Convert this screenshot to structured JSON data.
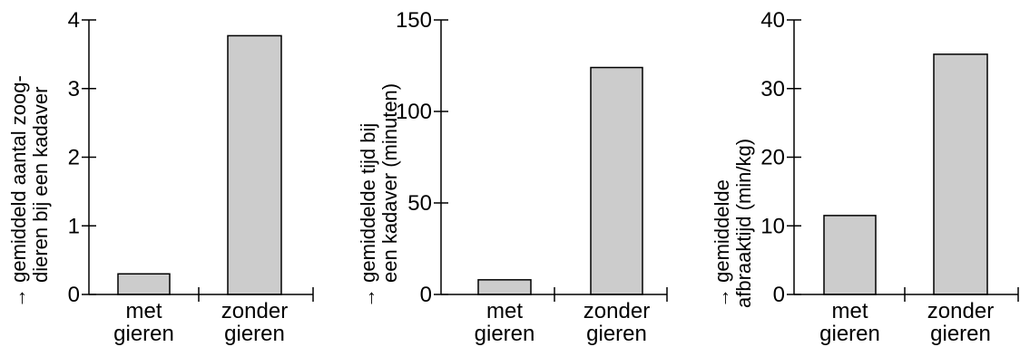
{
  "chart_data": [
    {
      "type": "bar",
      "categories": [
        [
          "met",
          "gieren"
        ],
        [
          "zonder",
          "gieren"
        ]
      ],
      "values": [
        0.3,
        3.77
      ],
      "ylabel_lines": [
        "gemiddeld aantal zoog-",
        "dieren bij een kadaver"
      ],
      "ylabel_arrow": "→",
      "ylim": [
        0,
        4
      ],
      "yticks": [
        0,
        1,
        2,
        3,
        4
      ],
      "ytick_labels": [
        "0",
        "1",
        "2",
        "3",
        "4"
      ],
      "grid": false,
      "bar_color": "#cccccc"
    },
    {
      "type": "bar",
      "categories": [
        [
          "met",
          "gieren"
        ],
        [
          "zonder",
          "gieren"
        ]
      ],
      "values": [
        8,
        124
      ],
      "ylabel_lines": [
        "gemiddelde tijd bij",
        "een kadaver (minuten)"
      ],
      "ylabel_arrow": "→",
      "ylim": [
        0,
        150
      ],
      "yticks": [
        0,
        50,
        100,
        150
      ],
      "ytick_labels": [
        "0",
        "50",
        "100",
        "150"
      ],
      "grid": false,
      "bar_color": "#cccccc"
    },
    {
      "type": "bar",
      "categories": [
        [
          "met",
          "gieren"
        ],
        [
          "zonder",
          "gieren"
        ]
      ],
      "values": [
        11.5,
        35
      ],
      "ylabel_lines": [
        "gemiddelde",
        "afbraaktijd (min/kg)"
      ],
      "ylabel_arrow": "→",
      "ylim": [
        0,
        40
      ],
      "yticks": [
        0,
        10,
        20,
        30,
        40
      ],
      "ytick_labels": [
        "0",
        "10",
        "20",
        "30",
        "40"
      ],
      "grid": false,
      "bar_color": "#cccccc"
    }
  ]
}
